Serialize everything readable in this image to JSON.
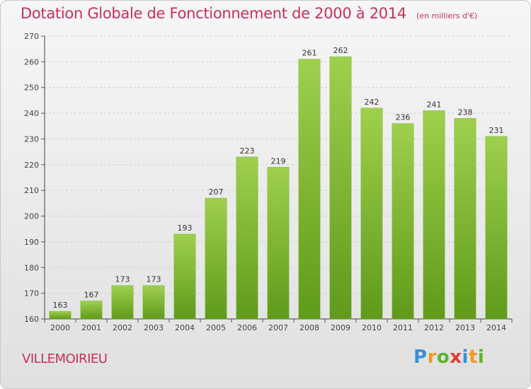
{
  "header": {
    "title": "Dotation Globale de Fonctionnement de 2000 à 2014",
    "unit": "(en milliers d'€)"
  },
  "footer": {
    "commune": "VILLEMOIRIEU",
    "logo_letters": [
      "P",
      "r",
      "o",
      "x",
      "i",
      "t",
      "i"
    ]
  },
  "colors": {
    "bar_top": "#9ed04d",
    "bar_bottom": "#5f9a1a",
    "title": "#c8305a",
    "logo": [
      "#3a8fd6",
      "#f29a1d",
      "#5bb531",
      "#e23b2e",
      "#3a8fd6",
      "#f29a1d",
      "#5bb531"
    ]
  },
  "chart_data": {
    "type": "bar",
    "title": "Dotation Globale de Fonctionnement de 2000 à 2014",
    "subtitle": "(en milliers d'€)",
    "xlabel": "",
    "ylabel": "",
    "categories": [
      "2000",
      "2001",
      "2002",
      "2003",
      "2004",
      "2005",
      "2006",
      "2007",
      "2008",
      "2009",
      "2010",
      "2011",
      "2012",
      "2013",
      "2014"
    ],
    "values": [
      163,
      167,
      173,
      173,
      193,
      207,
      223,
      219,
      261,
      262,
      242,
      236,
      241,
      238,
      231
    ],
    "ylim": [
      160,
      270
    ],
    "yticks": [
      160,
      170,
      180,
      190,
      200,
      210,
      220,
      230,
      240,
      250,
      260,
      270
    ],
    "grid": true,
    "legend": "none"
  }
}
